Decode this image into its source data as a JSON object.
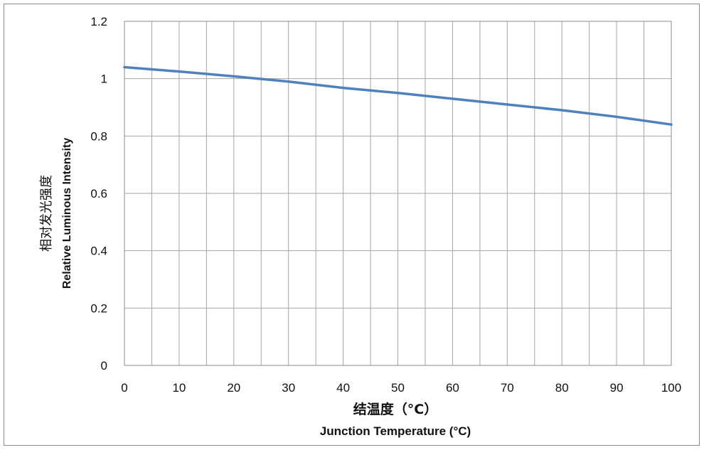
{
  "chart_data": {
    "type": "line",
    "x": [
      0,
      10,
      20,
      30,
      40,
      50,
      60,
      70,
      80,
      90,
      100
    ],
    "series": [
      {
        "values": [
          1.04,
          1.025,
          1.008,
          0.99,
          0.968,
          0.95,
          0.93,
          0.91,
          0.89,
          0.867,
          0.84
        ]
      }
    ],
    "xlim": [
      0,
      100
    ],
    "ylim": [
      0,
      1.2
    ],
    "x_ticks": [
      "0",
      "10",
      "20",
      "30",
      "40",
      "50",
      "60",
      "70",
      "80",
      "90",
      "100"
    ],
    "y_ticks": [
      "0",
      "0.2",
      "0.4",
      "0.6",
      "0.8",
      "1",
      "1.2"
    ],
    "xlabel_cn": "结温度（°C）",
    "xlabel": "Junction Temperature (°C)",
    "ylabel_cn": "相对发光强度",
    "ylabel": "Relative Luminous Intensity",
    "grid": true,
    "line_color": "#4f81bd",
    "grid_color": "#a6a6a6"
  }
}
